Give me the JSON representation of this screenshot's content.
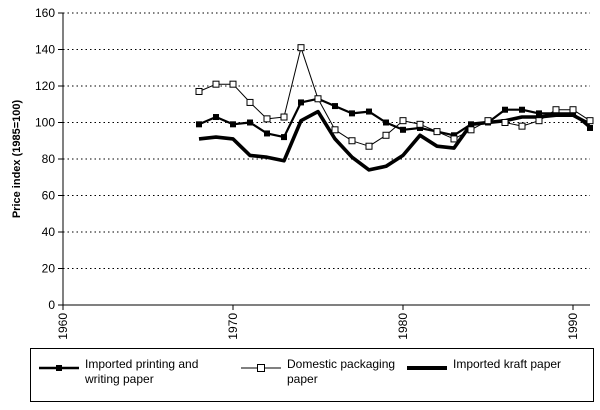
{
  "chart_data": {
    "type": "line",
    "title": "",
    "xlabel": "",
    "ylabel": "Price index (1985=100)",
    "xlim": [
      1960,
      1991
    ],
    "ylim": [
      0,
      160
    ],
    "xticks": [
      1960,
      1970,
      1980,
      1990
    ],
    "yticks": [
      0,
      20,
      40,
      60,
      80,
      100,
      120,
      140,
      160
    ],
    "xtick_labels": [
      "1960",
      "1970",
      "1980",
      "1990"
    ],
    "ytick_labels": [
      "0",
      "20",
      "40",
      "60",
      "80",
      "100",
      "120",
      "140",
      "160"
    ],
    "grid": "horizontal-dotted",
    "legend_position": "bottom",
    "series": [
      {
        "name": "Imported printing and writing paper",
        "marker": "filled-square",
        "line": "medium",
        "color": "#000000",
        "x": [
          1968,
          1969,
          1970,
          1971,
          1972,
          1973,
          1974,
          1975,
          1976,
          1977,
          1978,
          1979,
          1980,
          1981,
          1982,
          1983,
          1984,
          1985,
          1986,
          1987,
          1988,
          1989,
          1990,
          1991
        ],
        "y": [
          99,
          103,
          99,
          100,
          94,
          92,
          111,
          113,
          109,
          105,
          106,
          100,
          96,
          97,
          95,
          93,
          99,
          100,
          107,
          107,
          105,
          105,
          105,
          97
        ]
      },
      {
        "name": "Domestic packaging paper",
        "marker": "open-square",
        "line": "thin",
        "color": "#000000",
        "x": [
          1968,
          1969,
          1970,
          1971,
          1972,
          1973,
          1974,
          1975,
          1976,
          1977,
          1978,
          1979,
          1980,
          1981,
          1982,
          1983,
          1984,
          1985,
          1986,
          1987,
          1988,
          1989,
          1990,
          1991
        ],
        "y": [
          117,
          121,
          121,
          111,
          102,
          103,
          141,
          113,
          96,
          90,
          87,
          93,
          101,
          99,
          95,
          91,
          96,
          101,
          100,
          98,
          101,
          107,
          107,
          101
        ]
      },
      {
        "name": "Imported kraft paper",
        "marker": "none",
        "line": "thick",
        "color": "#000000",
        "x": [
          1968,
          1969,
          1970,
          1971,
          1972,
          1973,
          1974,
          1975,
          1976,
          1977,
          1978,
          1979,
          1980,
          1981,
          1982,
          1983,
          1984,
          1985,
          1986,
          1987,
          1988,
          1989,
          1990,
          1991
        ],
        "y": [
          91,
          92,
          91,
          82,
          81,
          79,
          101,
          106,
          91,
          81,
          74,
          76,
          82,
          93,
          87,
          86,
          99,
          100,
          101,
          103,
          103,
          104,
          104,
          99
        ]
      }
    ]
  },
  "legend": {
    "items": [
      {
        "line1": "Imported printing and",
        "line2": "writing paper"
      },
      {
        "line1": "Domestic packaging",
        "line2": "paper"
      },
      {
        "line1": "Imported kraft paper",
        "line2": ""
      }
    ]
  }
}
